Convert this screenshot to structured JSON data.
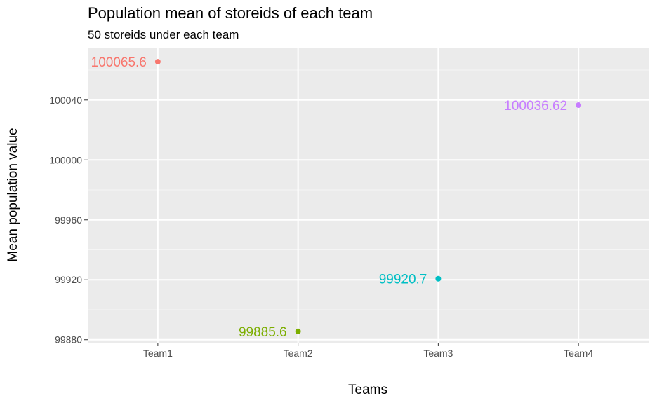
{
  "chart_data": {
    "type": "scatter",
    "title": "Population mean of storeids of each team",
    "subtitle": "50 storeids under each team",
    "xlabel": "Teams",
    "ylabel": "Mean population value",
    "categories": [
      "Team1",
      "Team2",
      "Team3",
      "Team4"
    ],
    "values": [
      100065.6,
      99885.6,
      99920.7,
      100036.62
    ],
    "data_labels": [
      "100065.6",
      "99885.6",
      "99920.7",
      "100036.62"
    ],
    "colors": [
      "#F8766D",
      "#7CAE00",
      "#00BFC4",
      "#C77CFF"
    ],
    "ylim": [
      99878,
      100075
    ],
    "yticks": [
      99880,
      99920,
      99960,
      100000,
      100040
    ],
    "ytick_labels": [
      "99880",
      "99920",
      "99960",
      "100000",
      "100040"
    ],
    "grid": true,
    "panel_background": "#EBEBEB",
    "legend": "none"
  }
}
